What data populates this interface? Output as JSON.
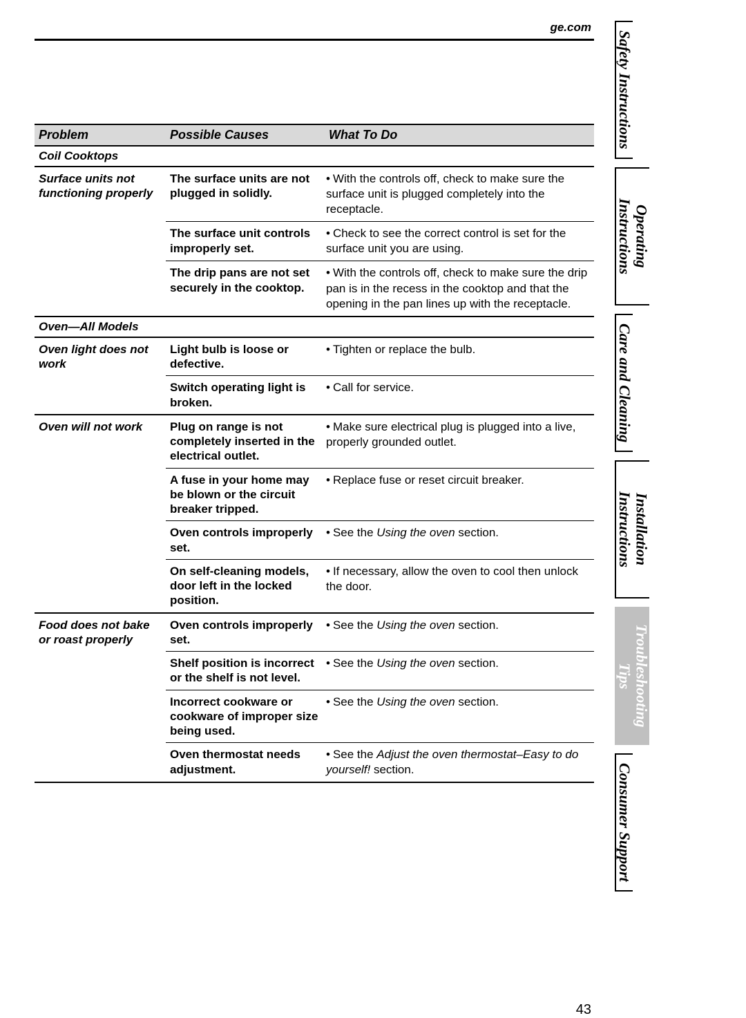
{
  "header": {
    "url": "ge.com"
  },
  "pageNumber": "43",
  "columns": {
    "problem": "Problem",
    "cause": "Possible Causes",
    "action": "What To Do"
  },
  "sections": [
    {
      "title": "Coil Cooktops",
      "problems": [
        {
          "problem": "Surface units not functioning properly",
          "rows": [
            {
              "cause": "The surface units are not plugged in solidly.",
              "action": "With the controls off, check to make sure the surface unit is plugged completely into the receptacle."
            },
            {
              "cause": "The surface unit controls improperly set.",
              "action": "Check to see the correct control is set for the surface unit you are using."
            },
            {
              "cause": "The drip pans are not set securely in the cooktop.",
              "action": "With the controls off, check to make sure the drip pan is in the recess in the cooktop and that the opening in the pan lines up with the receptacle."
            }
          ]
        }
      ]
    },
    {
      "title": "Oven—All Models",
      "problems": [
        {
          "problem": "Oven light does not work",
          "rows": [
            {
              "cause": "Light bulb is loose or defective.",
              "action": "Tighten or replace the bulb."
            },
            {
              "cause": "Switch operating light is broken.",
              "action": "Call for service."
            }
          ]
        },
        {
          "problem": "Oven will not work",
          "rows": [
            {
              "cause": "Plug on range is not completely inserted in the electrical outlet.",
              "action": "Make sure electrical plug is plugged into a live, properly grounded outlet."
            },
            {
              "cause": "A fuse in your home may be blown or the circuit breaker tripped.",
              "action": "Replace fuse or reset circuit breaker."
            },
            {
              "cause": "Oven controls improperly set.",
              "action_pre": "See the ",
              "action_italic": "Using the oven",
              "action_post": " section."
            },
            {
              "cause": "On self-cleaning models, door left in the locked position.",
              "action": "If necessary, allow the oven to cool then unlock the door."
            }
          ]
        },
        {
          "problem": "Food does not bake or roast properly",
          "rows": [
            {
              "cause": "Oven controls improperly set.",
              "action_pre": "See the ",
              "action_italic": "Using the oven",
              "action_post": " section."
            },
            {
              "cause": "Shelf position is incorrect or the shelf is not level.",
              "action_pre": "See the ",
              "action_italic": "Using the oven",
              "action_post": " section."
            },
            {
              "cause": "Incorrect cookware or cookware of improper size being used.",
              "action_pre": "See the ",
              "action_italic": "Using the oven",
              "action_post": " section."
            },
            {
              "cause": "Oven thermostat needs adjustment.",
              "action_pre": "See the ",
              "action_italic": "Adjust the oven thermostat–Easy to do yourself!",
              "action_post": " section."
            }
          ]
        }
      ]
    }
  ],
  "tabs": [
    {
      "label": "Safety Instructions",
      "active": false
    },
    {
      "label": "Operating Instructions",
      "active": false
    },
    {
      "label": "Care and Cleaning",
      "active": false
    },
    {
      "label": "Installation Instructions",
      "active": false
    },
    {
      "label": "Troubleshooting Tips",
      "active": true
    },
    {
      "label": "Consumer Support",
      "active": false
    }
  ],
  "style": {
    "header_bg": "#d9d9d9",
    "border_color": "#000000",
    "active_tab_bg": "#c0c0c0",
    "active_tab_fg": "#ffffff",
    "body_font_size_pt": 13,
    "heading_font_size_pt": 14
  }
}
